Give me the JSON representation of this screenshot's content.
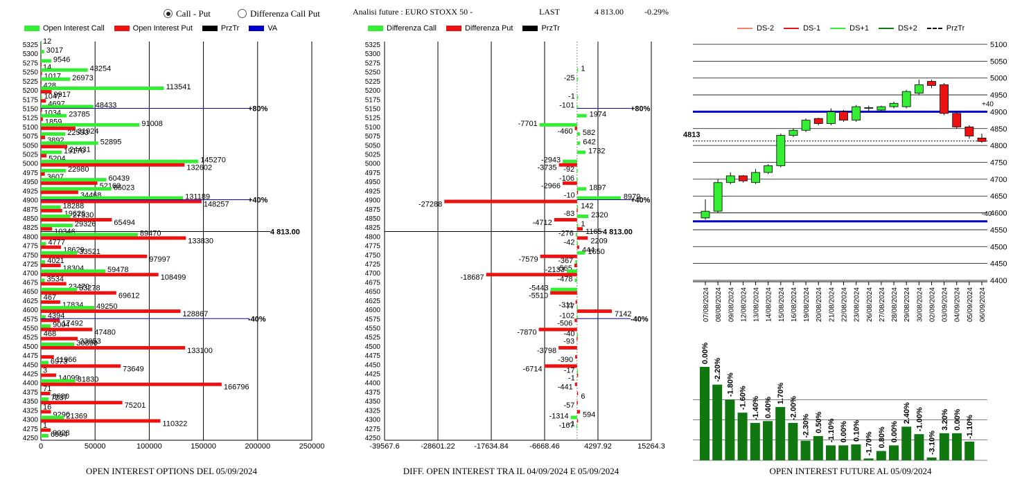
{
  "header": {
    "radio_callput": "Call - Put",
    "radio_diff": "Differenza Call Put",
    "title": "Analisi future : EURO STOXX 50 -",
    "last_label": "LAST",
    "last_value": "4 813.00",
    "change": "-0.29%"
  },
  "colors": {
    "green": "#33ee33",
    "red": "#ee1111",
    "blue": "#0000cc",
    "darkgreen": "#117711"
  },
  "legend1": [
    "Open Interest Call",
    "Open Interest Put",
    "PrzTr",
    "VA"
  ],
  "legend2": [
    "Differenza Call",
    "Differenza Put",
    "PrzTr"
  ],
  "legend3": [
    "DS-2",
    "DS-1",
    "DS+1",
    "DS+2",
    "PrzTr"
  ],
  "captions": {
    "c1": "OPEN INTEREST OPTIONS DEL 05/09/2024",
    "c2": "DIFF. OPEN INTEREST TRA IL 04/09/2024 E 05/09/2024",
    "c3": "OPEN INTEREST FUTURE AL 05/09/2024"
  },
  "chart_data": [
    {
      "type": "bar",
      "orientation": "horizontal",
      "categories": [
        5325,
        5300,
        5275,
        5250,
        5225,
        5200,
        5175,
        5150,
        5125,
        5100,
        5075,
        5050,
        5025,
        5000,
        4975,
        4950,
        4925,
        4900,
        4875,
        4850,
        4825,
        4800,
        4775,
        4750,
        4725,
        4700,
        4675,
        4650,
        4625,
        4600,
        4575,
        4550,
        4525,
        4500,
        4475,
        4450,
        4425,
        4400,
        4375,
        4350,
        4325,
        4300,
        4275,
        4250
      ],
      "series": [
        {
          "name": "Open Interest Call",
          "values": [
            12,
            3017,
            9546,
            43254,
            26973,
            113541,
            1047,
            48433,
            23785,
            91008,
            22533,
            52895,
            19170,
            145270,
            22980,
            60439,
            65023,
            131189,
            18288,
            27330,
            29326,
            89470,
            4777,
            33521,
            4021,
            59478,
            3534,
            33278,
            467,
            49250,
            4394,
            9004,
            468,
            30890,
            0,
            6973,
            3,
            31830,
            71,
            7237,
            16,
            21369,
            1,
            6994
          ]
        },
        {
          "name": "Open Interest Put",
          "values": [
            0,
            0,
            14,
            1017,
            428,
            9917,
            4697,
            1034,
            1859,
            31924,
            3892,
            24431,
            5204,
            132602,
            3607,
            52160,
            34468,
            148257,
            19626,
            65494,
            10346,
            133830,
            18629,
            97997,
            18304,
            108499,
            23470,
            69612,
            17834,
            128867,
            17492,
            47480,
            33953,
            133100,
            11966,
            73649,
            14099,
            166796,
            8680,
            75201,
            9290,
            110322,
            9028,
            0
          ]
        }
      ],
      "xticks": [
        0,
        50000,
        100000,
        150000,
        200000,
        250000
      ],
      "xlim": [
        0,
        250000
      ],
      "prztr": "4 813.00",
      "va_lines": [
        {
          "strike": 5150,
          "label": "+80%"
        },
        {
          "strike": 4900,
          "label": "+40%"
        },
        {
          "strike": 4575,
          "label": "-40%"
        }
      ]
    },
    {
      "type": "bar",
      "orientation": "horizontal",
      "categories": [
        5325,
        5300,
        5275,
        5250,
        5225,
        5200,
        5175,
        5150,
        5125,
        5100,
        5075,
        5050,
        5025,
        5000,
        4975,
        4950,
        4925,
        4900,
        4875,
        4850,
        4825,
        4800,
        4775,
        4750,
        4725,
        4700,
        4675,
        4650,
        4625,
        4600,
        4575,
        4550,
        4525,
        4500,
        4475,
        4450,
        4425,
        4400,
        4375,
        4350,
        4325,
        4300,
        4275,
        4250
      ],
      "series": [
        {
          "name": "Differenza Call",
          "values": [
            null,
            null,
            null,
            1,
            -25,
            null,
            -1,
            -101,
            1974,
            -7701,
            582,
            642,
            1732,
            -2943,
            -92,
            -106,
            1897,
            8979,
            142,
            2320,
            1,
            -276,
            -42,
            1650,
            -367,
            -2133,
            -478,
            -5443,
            null,
            -77,
            -102,
            null,
            -40,
            null,
            null,
            null,
            -17,
            null,
            null,
            null,
            null,
            -1314,
            -167,
            null
          ]
        },
        {
          "name": "Differenza Put",
          "values": [
            null,
            null,
            null,
            null,
            null,
            null,
            null,
            null,
            null,
            -460,
            null,
            null,
            null,
            -3735,
            null,
            -2966,
            -10,
            -27288,
            -83,
            -4712,
            1165,
            2209,
            444,
            -7579,
            -565,
            -18687,
            null,
            -5510,
            -311,
            7142,
            -506,
            -7870,
            -93,
            -3798,
            -390,
            -6714,
            -1,
            -441,
            6,
            -57,
            594,
            -1,
            null,
            null
          ]
        }
      ],
      "xticks": [
        -39567.6,
        -28601.22,
        -17634.84,
        -6668.46,
        4297.92,
        15264.3
      ],
      "xtick_labels": [
        "-39567.6",
        "-28601.22",
        "-17634.84",
        "-6668.46",
        "4297.92",
        "15264.3"
      ],
      "xlim": [
        -39567.6,
        15264.3
      ],
      "prztr": "4 813.00",
      "va_lines": [
        {
          "strike": 5150,
          "label": "+80%"
        },
        {
          "strike": 4900,
          "label": "+40%"
        },
        {
          "strike": 4575,
          "label": "-40%"
        }
      ]
    },
    {
      "type": "candlestick",
      "x": [
        "07/08/2024",
        "08/08/2024",
        "09/08/2024",
        "12/08/2024",
        "13/08/2024",
        "14/08/2024",
        "15/08/2024",
        "16/08/2024",
        "19/08/2024",
        "20/08/2024",
        "21/08/2024",
        "22/08/2024",
        "23/08/2024",
        "26/08/2024",
        "27/08/2024",
        "28/08/2024",
        "29/08/2024",
        "30/08/2024",
        "02/09/2024",
        "03/09/2024",
        "04/09/2024",
        "05/09/2024",
        "06/09/2024"
      ],
      "ohlc": [
        [
          4585,
          4605,
          4580,
          4640
        ],
        [
          4605,
          4690,
          4600,
          4700
        ],
        [
          4690,
          4710,
          4685,
          4720
        ],
        [
          4710,
          4695,
          4690,
          4712
        ],
        [
          4690,
          4720,
          4685,
          4730
        ],
        [
          4720,
          4740,
          4715,
          4745
        ],
        [
          4740,
          4830,
          4735,
          4835
        ],
        [
          4830,
          4845,
          4825,
          4850
        ],
        [
          4845,
          4875,
          4840,
          4880
        ],
        [
          4880,
          4865,
          4860,
          4882
        ],
        [
          4865,
          4900,
          4860,
          4910
        ],
        [
          4900,
          4875,
          4870,
          4905
        ],
        [
          4875,
          4915,
          4870,
          4920
        ],
        [
          4910,
          4912,
          4900,
          4918
        ],
        [
          4905,
          4915,
          4900,
          4918
        ],
        [
          4915,
          4925,
          4910,
          4930
        ],
        [
          4915,
          4960,
          4910,
          4965
        ],
        [
          4955,
          4980,
          4950,
          4995
        ],
        [
          4990,
          4978,
          4970,
          4995
        ],
        [
          4980,
          4895,
          4890,
          4985
        ],
        [
          4895,
          4855,
          4850,
          4900
        ],
        [
          4855,
          4828,
          4820,
          4860
        ],
        [
          4822,
          4812,
          4808,
          4835
        ]
      ],
      "yticks": [
        4400,
        4450,
        4500,
        4550,
        4600,
        4650,
        4700,
        4750,
        4800,
        4850,
        4900,
        4950,
        5000,
        5050,
        5100
      ],
      "ylim": [
        4400,
        5100
      ],
      "hlines": [
        {
          "value": 4900,
          "label": "+40"
        },
        {
          "value": 4575,
          "label": "-40"
        }
      ],
      "prztr": 4813,
      "prztr_label": "4813",
      "volume_labels": [
        "0.00%",
        "-2.20%",
        "-1.80%",
        "-1.60%",
        "-1.40%",
        "0.40%",
        "1.70%",
        "-2.00%",
        "-2.30%",
        "0.50%",
        "-1.10%",
        "0.00%",
        "0.10%",
        "-1.70%",
        "0.80%",
        "0.00%",
        "2.40%",
        "-1.00%",
        "-3.10%",
        "3.20%",
        "0.00%",
        "-1.10%"
      ],
      "volume_values": [
        100,
        81,
        65,
        51,
        40,
        42,
        57,
        40,
        21,
        26,
        16,
        16,
        17,
        2,
        10,
        16,
        36,
        28,
        3,
        29,
        29,
        20
      ]
    }
  ]
}
